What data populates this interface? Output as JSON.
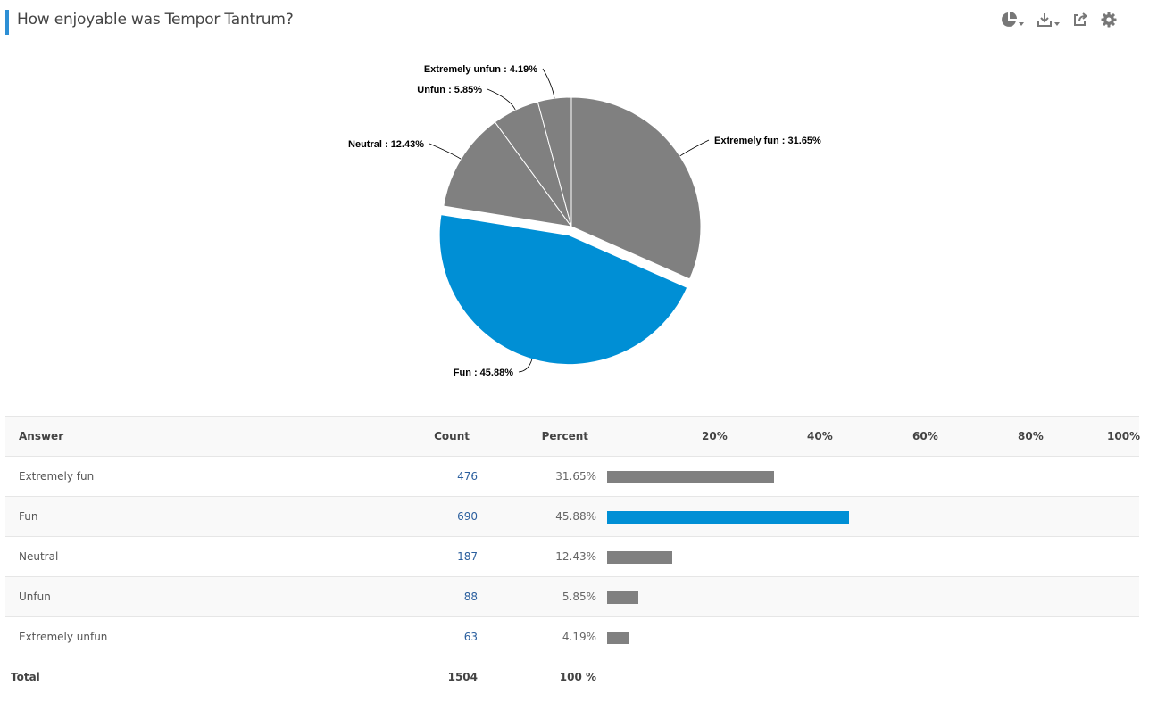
{
  "header": {
    "title": "How enjoyable was Tempor Tantrum?",
    "accent_color": "#2d8fd5",
    "icons": [
      "chart-type-icon",
      "download-icon",
      "share-icon",
      "settings-icon"
    ]
  },
  "colors": {
    "gray": "#808080",
    "blue": "#008fd5"
  },
  "chart_data": {
    "type": "pie",
    "title": "",
    "slices": [
      {
        "label": "Extremely fun",
        "value": 31.65,
        "color": "#808080",
        "exploded": false,
        "label_text": "Extremely fun : 31.65%"
      },
      {
        "label": "Fun",
        "value": 45.88,
        "color": "#008fd5",
        "exploded": true,
        "label_text": "Fun : 45.88%"
      },
      {
        "label": "Neutral",
        "value": 12.43,
        "color": "#808080",
        "exploded": false,
        "label_text": "Neutral : 12.43%"
      },
      {
        "label": "Unfun",
        "value": 5.85,
        "color": "#808080",
        "exploded": false,
        "label_text": "Unfun : 5.85%"
      },
      {
        "label": "Extremely unfun",
        "value": 4.19,
        "color": "#808080",
        "exploded": false,
        "label_text": "Extremely unfun : 4.19%"
      }
    ]
  },
  "table": {
    "headers": {
      "answer": "Answer",
      "count": "Count",
      "percent": "Percent"
    },
    "ticks": [
      "20%",
      "40%",
      "60%",
      "80%",
      "100%"
    ],
    "rows": [
      {
        "answer": "Extremely fun",
        "count": "476",
        "percent": "31.65%",
        "value": 31.65,
        "color": "#808080"
      },
      {
        "answer": "Fun",
        "count": "690",
        "percent": "45.88%",
        "value": 45.88,
        "color": "#008fd5"
      },
      {
        "answer": "Neutral",
        "count": "187",
        "percent": "12.43%",
        "value": 12.43,
        "color": "#808080"
      },
      {
        "answer": "Unfun",
        "count": "88",
        "percent": "5.85%",
        "value": 5.85,
        "color": "#808080"
      },
      {
        "answer": "Extremely unfun",
        "count": "63",
        "percent": "4.19%",
        "value": 4.19,
        "color": "#808080"
      }
    ],
    "total": {
      "label": "Total",
      "count": "1504",
      "percent": "100 %"
    }
  }
}
